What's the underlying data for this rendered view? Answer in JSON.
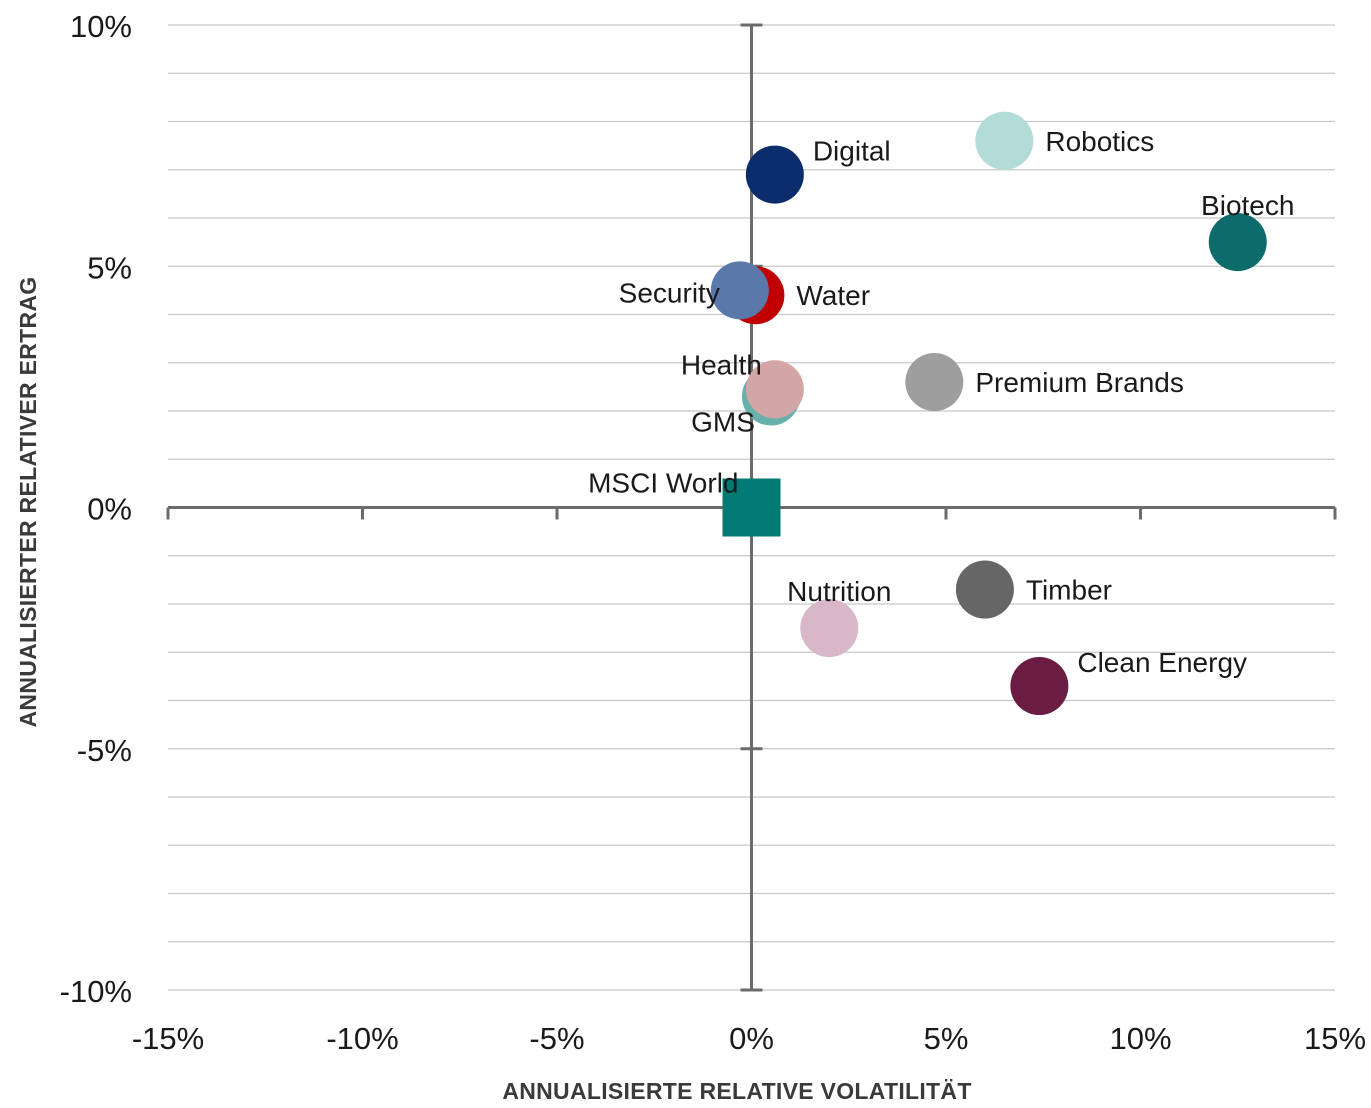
{
  "chart_data": {
    "type": "scatter",
    "title": "",
    "xlabel": "ANNUALISIERTE RELATIVE VOLATILITÄT",
    "ylabel": "ANNUALISIERTER RELATIVER ERTRAG",
    "xlim": [
      -15,
      15
    ],
    "ylim": [
      -10,
      10
    ],
    "x_ticks": [
      -15,
      -10,
      -5,
      0,
      5,
      10,
      15
    ],
    "x_tick_labels": [
      "-15%",
      "-10%",
      "-5%",
      "0%",
      "5%",
      "10%",
      "15%"
    ],
    "y_ticks": [
      10,
      5,
      0,
      -5,
      -10
    ],
    "y_tick_labels": [
      "10%",
      "5%",
      "0%",
      "-5%",
      "-10%"
    ],
    "y_grid_step": 1,
    "grid": "horizontal",
    "legend": "none",
    "points": [
      {
        "name": "Robotics",
        "x": 6.5,
        "y": 7.6,
        "color": "#b3dbd8",
        "marker": "circle",
        "label_pos": "right"
      },
      {
        "name": "Digital",
        "x": 0.6,
        "y": 6.9,
        "color": "#0c2d6b",
        "marker": "circle",
        "label_pos": "upper-right"
      },
      {
        "name": "Biotech",
        "x": 12.5,
        "y": 5.5,
        "color": "#0e6b6b",
        "marker": "circle",
        "label_pos": "above"
      },
      {
        "name": "Water",
        "x": 0.1,
        "y": 4.4,
        "color": "#c00000",
        "marker": "circle",
        "label_pos": "right"
      },
      {
        "name": "Security",
        "x": -0.3,
        "y": 4.5,
        "color": "#5b78ab",
        "marker": "circle",
        "label_pos": "left"
      },
      {
        "name": "GMS",
        "x": 0.5,
        "y": 2.3,
        "color": "#67b0ab",
        "marker": "circle",
        "label_pos": "lower-left"
      },
      {
        "name": "Health",
        "x": 0.6,
        "y": 2.45,
        "color": "#d4a5a5",
        "marker": "circle",
        "label_pos": "upper-left"
      },
      {
        "name": "Premium Brands",
        "x": 4.7,
        "y": 2.6,
        "color": "#9e9e9e",
        "marker": "circle",
        "label_pos": "right"
      },
      {
        "name": "MSCI World",
        "x": 0.0,
        "y": 0.0,
        "color": "#007a73",
        "marker": "square",
        "label_pos": "upper-left"
      },
      {
        "name": "Timber",
        "x": 6.0,
        "y": -1.7,
        "color": "#666666",
        "marker": "circle",
        "label_pos": "right"
      },
      {
        "name": "Nutrition",
        "x": 2.0,
        "y": -2.5,
        "color": "#d8b8c8",
        "marker": "circle",
        "label_pos": "above"
      },
      {
        "name": "Clean Energy",
        "x": 7.4,
        "y": -3.7,
        "color": "#6b1c42",
        "marker": "circle",
        "label_pos": "upper-right"
      }
    ]
  }
}
